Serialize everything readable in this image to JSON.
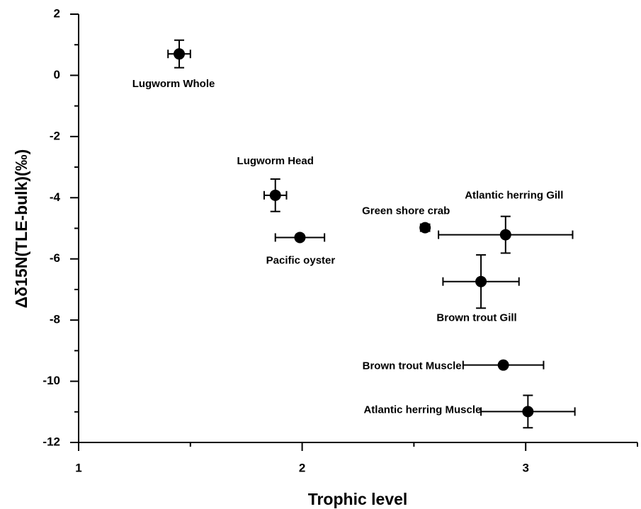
{
  "chart_data": {
    "type": "scatter",
    "x_label": "Trophic level",
    "y_label": "Δδ15N(TLE-bulk)(‰)",
    "labels": [
      "Lugworm Whole",
      "Lugworm Head",
      "Pacific oyster",
      "Green shore crab",
      "Atlantic herring Gill",
      "Brown trout Gill",
      "Brown trout Muscle",
      "Atlantic herring Muscle"
    ],
    "x": [
      1.45,
      1.88,
      1.99,
      2.55,
      2.91,
      2.8,
      2.9,
      3.01
    ],
    "y": [
      0.7,
      -3.92,
      -5.3,
      -4.98,
      -5.21,
      -6.74,
      -9.47,
      -10.99
    ],
    "xerr": [
      0.05,
      0.05,
      0.11,
      0.02,
      0.3,
      0.17,
      0.18,
      0.21
    ],
    "yerr": [
      0.45,
      0.53,
      0.05,
      0.05,
      0.6,
      0.87,
      0.05,
      0.53
    ],
    "color": "#000000",
    "xlim": [
      1,
      3.5
    ],
    "xticks": [
      1,
      2,
      3
    ],
    "xminorticks": [
      1.5,
      2.5,
      3.5
    ],
    "ylim": [
      -12,
      2
    ],
    "yticks": [
      -12,
      -10,
      -8,
      -6,
      -4,
      -2,
      0,
      2
    ],
    "yminorticks": [
      -11,
      -9,
      -7,
      -5,
      -3,
      -1,
      1
    ]
  }
}
